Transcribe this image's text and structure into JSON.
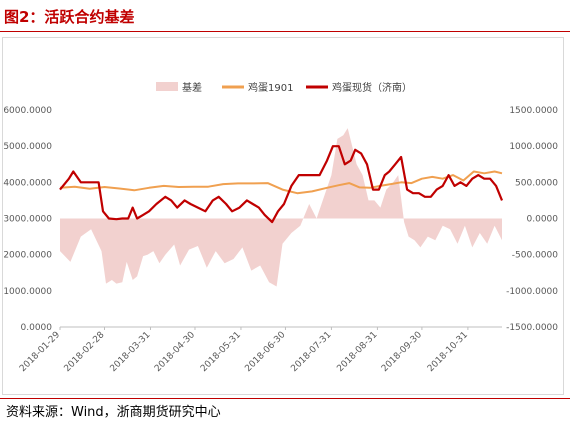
{
  "figure": {
    "title": "图2：活跃合约基差",
    "source": "资料来源：Wind，浙商期货研究中心",
    "accent_color": "#c00000"
  },
  "chart_data": {
    "type": "line",
    "legend_position": "top-center",
    "grid": false,
    "x_tick_labels": [
      "2018-01-29",
      "2018-02-28",
      "2018-03-31",
      "2018-04-30",
      "2018-05-31",
      "2018-06-30",
      "2018-07-31",
      "2018-08-31",
      "2018-09-30",
      "2018-10-31"
    ],
    "x_range": [
      "2018-01-29",
      "2018-11-23"
    ],
    "y_left": {
      "range": [
        0,
        6000
      ],
      "ticks": [
        0,
        1000,
        2000,
        3000,
        4000,
        5000,
        6000
      ],
      "tick_labels": [
        "0.0000",
        "1000.0000",
        "2000.0000",
        "3000.0000",
        "4000.0000",
        "5000.0000",
        "6000.0000"
      ]
    },
    "y_right": {
      "range": [
        -1500,
        1500
      ],
      "ticks": [
        -1500,
        -1000,
        -500,
        0,
        500,
        1000,
        1500
      ],
      "tick_labels": [
        "-1500.0000",
        "-1000.0000",
        "-500.0000",
        "0.0000",
        "500.0000",
        "1000.0000",
        "1500.0000"
      ]
    },
    "series": [
      {
        "name": "基差",
        "type": "area",
        "axis": "right",
        "color": "#f2d1cf",
        "x": [
          "2018-01-29",
          "2018-02-05",
          "2018-02-12",
          "2018-02-19",
          "2018-02-26",
          "2018-03-01",
          "2018-03-05",
          "2018-03-08",
          "2018-03-12",
          "2018-03-15",
          "2018-03-19",
          "2018-03-22",
          "2018-03-26",
          "2018-03-29",
          "2018-04-02",
          "2018-04-06",
          "2018-04-10",
          "2018-04-16",
          "2018-04-20",
          "2018-04-26",
          "2018-05-02",
          "2018-05-08",
          "2018-05-14",
          "2018-05-20",
          "2018-05-26",
          "2018-06-01",
          "2018-06-07",
          "2018-06-13",
          "2018-06-19",
          "2018-06-24",
          "2018-06-28",
          "2018-07-04",
          "2018-07-10",
          "2018-07-16",
          "2018-07-21",
          "2018-07-26",
          "2018-07-31",
          "2018-08-04",
          "2018-08-08",
          "2018-08-11",
          "2018-08-14",
          "2018-08-17",
          "2018-08-21",
          "2018-08-25",
          "2018-08-29",
          "2018-09-02",
          "2018-09-06",
          "2018-09-10",
          "2018-09-14",
          "2018-09-18",
          "2018-09-21",
          "2018-09-25",
          "2018-09-29",
          "2018-10-04",
          "2018-10-09",
          "2018-10-14",
          "2018-10-19",
          "2018-10-24",
          "2018-10-29",
          "2018-11-03",
          "2018-11-08",
          "2018-11-13",
          "2018-11-18",
          "2018-11-23"
        ],
        "values": [
          -450,
          -600,
          -250,
          -150,
          -450,
          -900,
          -850,
          -900,
          -880,
          -600,
          -850,
          -800,
          -520,
          -500,
          -450,
          -620,
          -500,
          -360,
          -650,
          -430,
          -380,
          -680,
          -450,
          -620,
          -560,
          -400,
          -720,
          -650,
          -880,
          -940,
          -350,
          -200,
          -100,
          200,
          0,
          300,
          600,
          1100,
          1150,
          1250,
          1000,
          750,
          600,
          250,
          250,
          150,
          400,
          480,
          600,
          -50,
          -250,
          -300,
          -400,
          -250,
          -300,
          -100,
          -150,
          -350,
          -100,
          -400,
          -200,
          -350,
          -100,
          -300
        ]
      },
      {
        "name": "鸡蛋1901",
        "type": "line",
        "axis": "left",
        "color": "#f0a050",
        "x": [
          "2018-01-29",
          "2018-02-08",
          "2018-02-18",
          "2018-02-28",
          "2018-03-10",
          "2018-03-20",
          "2018-03-30",
          "2018-04-09",
          "2018-04-19",
          "2018-04-29",
          "2018-05-09",
          "2018-05-19",
          "2018-05-29",
          "2018-06-08",
          "2018-06-18",
          "2018-06-28",
          "2018-07-08",
          "2018-07-18",
          "2018-07-28",
          "2018-08-05",
          "2018-08-12",
          "2018-08-19",
          "2018-08-26",
          "2018-09-02",
          "2018-09-09",
          "2018-09-16",
          "2018-09-23",
          "2018-09-30",
          "2018-10-07",
          "2018-10-14",
          "2018-10-21",
          "2018-10-28",
          "2018-11-04",
          "2018-11-11",
          "2018-11-18",
          "2018-11-23"
        ],
        "values": [
          3850,
          3880,
          3820,
          3870,
          3830,
          3780,
          3850,
          3900,
          3870,
          3880,
          3880,
          3950,
          3970,
          3970,
          3980,
          3800,
          3700,
          3750,
          3850,
          3920,
          3980,
          3860,
          3850,
          3900,
          3950,
          4000,
          3980,
          4100,
          4150,
          4100,
          4200,
          4050,
          4300,
          4250,
          4300,
          4250
        ]
      },
      {
        "name": "鸡蛋现货（济南）",
        "type": "line",
        "axis": "right",
        "color": "#c00000",
        "x": [
          "2018-01-29",
          "2018-02-04",
          "2018-02-07",
          "2018-02-12",
          "2018-02-18",
          "2018-02-22",
          "2018-02-24",
          "2018-02-27",
          "2018-03-03",
          "2018-03-08",
          "2018-03-12",
          "2018-03-16",
          "2018-03-19",
          "2018-03-22",
          "2018-03-26",
          "2018-03-30",
          "2018-04-04",
          "2018-04-10",
          "2018-04-14",
          "2018-04-18",
          "2018-04-23",
          "2018-04-27",
          "2018-05-02",
          "2018-05-07",
          "2018-05-12",
          "2018-05-16",
          "2018-05-21",
          "2018-05-25",
          "2018-05-30",
          "2018-06-04",
          "2018-06-08",
          "2018-06-12",
          "2018-06-16",
          "2018-06-21",
          "2018-06-25",
          "2018-06-29",
          "2018-07-04",
          "2018-07-09",
          "2018-07-14",
          "2018-07-18",
          "2018-07-23",
          "2018-07-28",
          "2018-08-01",
          "2018-08-05",
          "2018-08-09",
          "2018-08-13",
          "2018-08-16",
          "2018-08-20",
          "2018-08-24",
          "2018-08-28",
          "2018-09-01",
          "2018-09-05",
          "2018-09-08",
          "2018-09-12",
          "2018-09-16",
          "2018-09-20",
          "2018-09-24",
          "2018-09-28",
          "2018-10-02",
          "2018-10-06",
          "2018-10-10",
          "2018-10-14",
          "2018-10-18",
          "2018-10-22",
          "2018-10-26",
          "2018-10-30",
          "2018-11-03",
          "2018-11-07",
          "2018-11-11",
          "2018-11-15",
          "2018-11-19",
          "2018-11-23"
        ],
        "values": [
          400,
          550,
          650,
          500,
          500,
          500,
          500,
          100,
          0,
          -10,
          0,
          0,
          150,
          0,
          50,
          100,
          200,
          300,
          250,
          150,
          250,
          200,
          150,
          100,
          250,
          300,
          200,
          100,
          150,
          250,
          200,
          150,
          50,
          -50,
          100,
          200,
          450,
          600,
          600,
          600,
          600,
          800,
          1000,
          1000,
          750,
          800,
          950,
          900,
          750,
          400,
          400,
          600,
          650,
          750,
          850,
          400,
          350,
          350,
          300,
          300,
          400,
          450,
          600,
          450,
          500,
          450,
          550,
          600,
          550,
          550,
          450,
          250
        ]
      }
    ]
  }
}
